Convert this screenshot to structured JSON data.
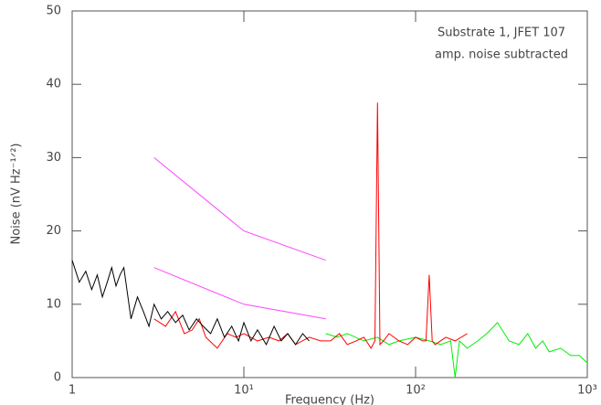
{
  "chart_data": {
    "type": "line",
    "ylabel": "Noise (nV Hz⁻¹ᐟ²)",
    "xlabel": "Frequency (Hz)",
    "annotations": [
      "Substrate 1, JFET 107",
      "amp. noise subtracted"
    ],
    "xscale": "log",
    "xlim": [
      1,
      1000
    ],
    "ylim": [
      0,
      50
    ],
    "xticks": [
      1,
      {
        "value": 10,
        "label": "10¹"
      },
      {
        "value": 100,
        "label": "10²"
      },
      {
        "value": 1000,
        "label": "10³"
      }
    ],
    "yticks": [
      0,
      10,
      20,
      30,
      40,
      50
    ],
    "series": [
      {
        "color": "#00ee00",
        "x": [
          30,
          35,
          40,
          50,
          60,
          70,
          80,
          100,
          120,
          140,
          160,
          170,
          180,
          200,
          230,
          260,
          300,
          350,
          400,
          450,
          500,
          550,
          600,
          700,
          800,
          900,
          1000
        ],
        "values": [
          6,
          5.5,
          6,
          5,
          5.5,
          4.5,
          5,
          5.5,
          5,
          4.5,
          5,
          0,
          5,
          4,
          5,
          6,
          7.5,
          5,
          4.5,
          6,
          4,
          5,
          3.5,
          4,
          3,
          3,
          2
        ]
      },
      {
        "color": "#ff0000",
        "x": [
          3,
          3.5,
          4,
          4.5,
          5,
          5.5,
          6,
          7,
          8,
          9,
          10,
          12,
          14,
          16,
          18,
          20,
          24,
          28,
          32,
          36,
          40,
          45,
          50,
          55,
          58,
          60,
          62,
          65,
          70,
          80,
          90,
          100,
          110,
          115,
          120,
          125,
          130,
          150,
          170,
          200
        ],
        "values": [
          8,
          7,
          9,
          6,
          6.5,
          8,
          5.5,
          4,
          6,
          5.5,
          6,
          5,
          5.5,
          5,
          6,
          4.5,
          5.5,
          5,
          5,
          6,
          4.5,
          5,
          5.5,
          4,
          5,
          37.5,
          4.5,
          5,
          6,
          5,
          4.5,
          5.5,
          5,
          5,
          14,
          5,
          4.5,
          5.5,
          5,
          6
        ]
      },
      {
        "color": "#000000",
        "x": [
          1,
          1.1,
          1.2,
          1.3,
          1.4,
          1.5,
          1.6,
          1.7,
          1.8,
          1.9,
          2.0,
          2.2,
          2.4,
          2.6,
          2.8,
          3.0,
          3.3,
          3.6,
          4,
          4.4,
          4.8,
          5.3,
          5.8,
          6.4,
          7,
          7.7,
          8.5,
          9.3,
          10,
          11,
          12,
          13.5,
          15,
          16.5,
          18,
          20,
          22,
          24
        ],
        "values": [
          16,
          13,
          14.5,
          12,
          14,
          11,
          13,
          15,
          12.5,
          14,
          15,
          8,
          11,
          9,
          7,
          10,
          8,
          9,
          7.5,
          8.5,
          6.5,
          8,
          7,
          6,
          8,
          5.5,
          7,
          5,
          7.5,
          5,
          6.5,
          4.5,
          7,
          5,
          6,
          4.5,
          6,
          5
        ]
      },
      {
        "color": "#ff44ff",
        "x": [
          3,
          10,
          30
        ],
        "values": [
          30,
          20,
          16
        ]
      },
      {
        "color": "#ff44ff",
        "x": [
          3,
          10,
          30
        ],
        "values": [
          15,
          10,
          8
        ]
      }
    ]
  }
}
